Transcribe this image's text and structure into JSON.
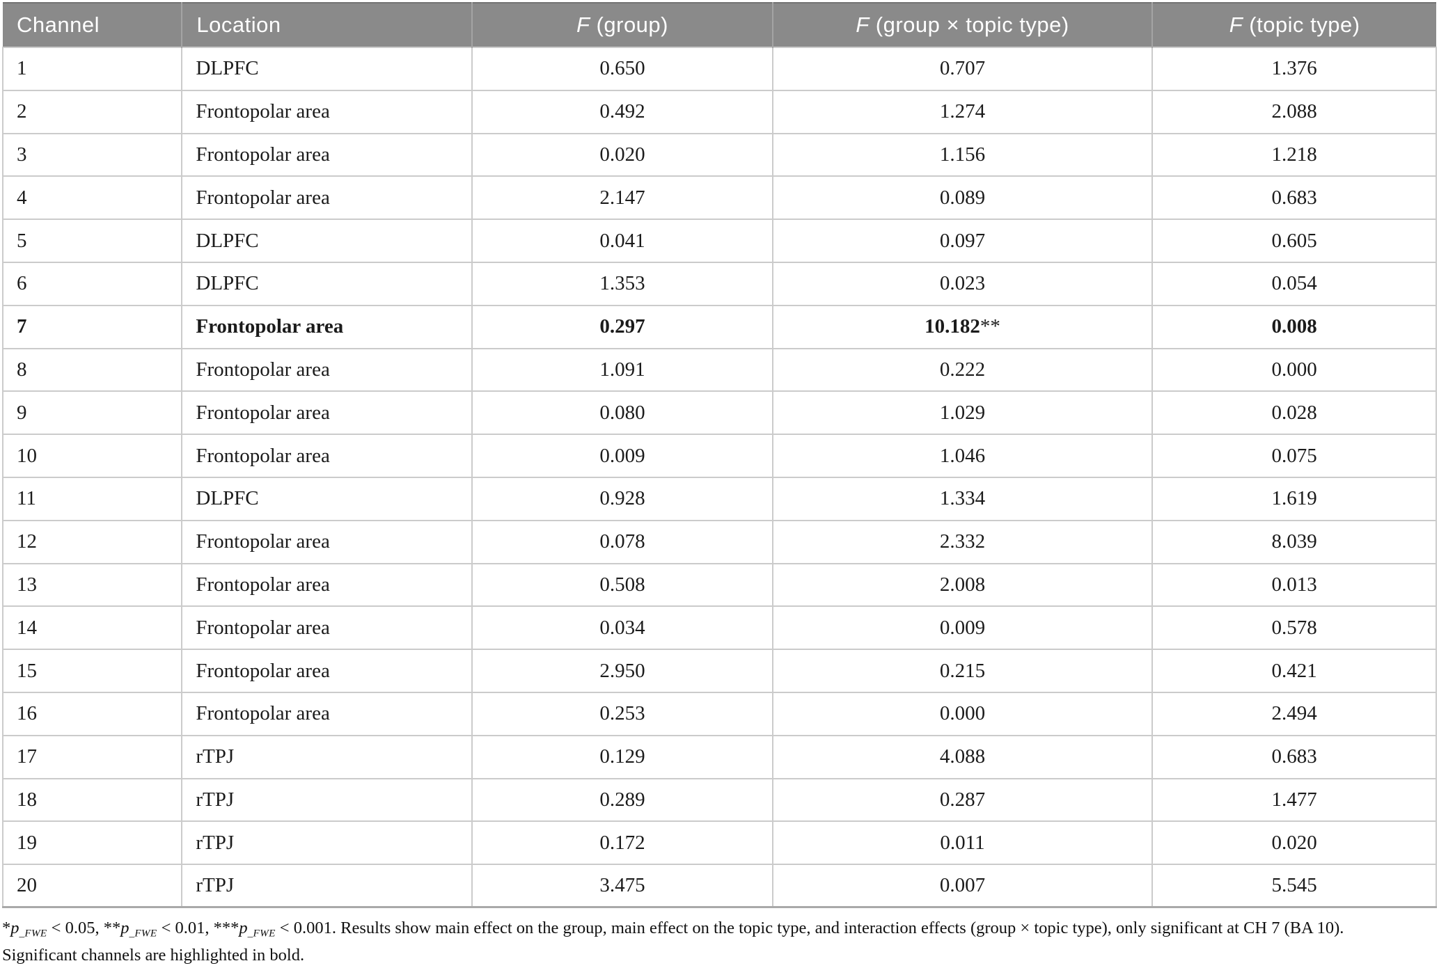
{
  "table": {
    "headers": [
      {
        "label": "Channel"
      },
      {
        "label": "Location"
      },
      {
        "italic": "F",
        "rest": " (group)"
      },
      {
        "italic": "F",
        "rest": " (group × topic type)"
      },
      {
        "italic": "F",
        "rest": " (topic type)"
      }
    ],
    "rows": [
      {
        "channel": "1",
        "location": "DLPFC",
        "f_group": "0.650",
        "f_interaction": "0.707",
        "stars": "",
        "f_topic": "1.376",
        "bold": false
      },
      {
        "channel": "2",
        "location": "Frontopolar area",
        "f_group": "0.492",
        "f_interaction": "1.274",
        "stars": "",
        "f_topic": "2.088",
        "bold": false
      },
      {
        "channel": "3",
        "location": "Frontopolar area",
        "f_group": "0.020",
        "f_interaction": "1.156",
        "stars": "",
        "f_topic": "1.218",
        "bold": false
      },
      {
        "channel": "4",
        "location": "Frontopolar area",
        "f_group": "2.147",
        "f_interaction": "0.089",
        "stars": "",
        "f_topic": "0.683",
        "bold": false
      },
      {
        "channel": "5",
        "location": "DLPFC",
        "f_group": "0.041",
        "f_interaction": "0.097",
        "stars": "",
        "f_topic": "0.605",
        "bold": false
      },
      {
        "channel": "6",
        "location": "DLPFC",
        "f_group": "1.353",
        "f_interaction": "0.023",
        "stars": "",
        "f_topic": "0.054",
        "bold": false
      },
      {
        "channel": "7",
        "location": "Frontopolar area",
        "f_group": "0.297",
        "f_interaction": "10.182",
        "stars": "**",
        "f_topic": "0.008",
        "bold": true
      },
      {
        "channel": "8",
        "location": "Frontopolar area",
        "f_group": "1.091",
        "f_interaction": "0.222",
        "stars": "",
        "f_topic": "0.000",
        "bold": false
      },
      {
        "channel": "9",
        "location": "Frontopolar area",
        "f_group": "0.080",
        "f_interaction": "1.029",
        "stars": "",
        "f_topic": "0.028",
        "bold": false
      },
      {
        "channel": "10",
        "location": "Frontopolar area",
        "f_group": "0.009",
        "f_interaction": "1.046",
        "stars": "",
        "f_topic": "0.075",
        "bold": false
      },
      {
        "channel": "11",
        "location": "DLPFC",
        "f_group": "0.928",
        "f_interaction": "1.334",
        "stars": "",
        "f_topic": "1.619",
        "bold": false
      },
      {
        "channel": "12",
        "location": "Frontopolar area",
        "f_group": "0.078",
        "f_interaction": "2.332",
        "stars": "",
        "f_topic": "8.039",
        "bold": false
      },
      {
        "channel": "13",
        "location": "Frontopolar area",
        "f_group": "0.508",
        "f_interaction": "2.008",
        "stars": "",
        "f_topic": "0.013",
        "bold": false
      },
      {
        "channel": "14",
        "location": "Frontopolar area",
        "f_group": "0.034",
        "f_interaction": "0.009",
        "stars": "",
        "f_topic": "0.578",
        "bold": false
      },
      {
        "channel": "15",
        "location": "Frontopolar area",
        "f_group": "2.950",
        "f_interaction": "0.215",
        "stars": "",
        "f_topic": "0.421",
        "bold": false
      },
      {
        "channel": "16",
        "location": "Frontopolar area",
        "f_group": "0.253",
        "f_interaction": "0.000",
        "stars": "",
        "f_topic": "2.494",
        "bold": false
      },
      {
        "channel": "17",
        "location": "rTPJ",
        "f_group": "0.129",
        "f_interaction": "4.088",
        "stars": "",
        "f_topic": "0.683",
        "bold": false
      },
      {
        "channel": "18",
        "location": "rTPJ",
        "f_group": "0.289",
        "f_interaction": "0.287",
        "stars": "",
        "f_topic": "1.477",
        "bold": false
      },
      {
        "channel": "19",
        "location": "rTPJ",
        "f_group": "0.172",
        "f_interaction": "0.011",
        "stars": "",
        "f_topic": "0.020",
        "bold": false
      },
      {
        "channel": "20",
        "location": "rTPJ",
        "f_group": "3.475",
        "f_interaction": "0.007",
        "stars": "",
        "f_topic": "5.545",
        "bold": false
      }
    ]
  },
  "footnote": {
    "parts": [
      {
        "t": "plain",
        "v": "*"
      },
      {
        "t": "ip",
        "v": "p"
      },
      {
        "t": "sub",
        "v": "_FWE"
      },
      {
        "t": "plain",
        "v": " < 0.05, **"
      },
      {
        "t": "ip",
        "v": "p"
      },
      {
        "t": "sub",
        "v": "_FWE"
      },
      {
        "t": "plain",
        "v": " < 0.01, ***"
      },
      {
        "t": "ip",
        "v": "p"
      },
      {
        "t": "sub",
        "v": "_FWE"
      },
      {
        "t": "plain",
        "v": " < 0.001. Results show main effect on the group, main effect on the topic type, and interaction effects (group × topic type), only significant at CH 7 (BA 10)."
      }
    ],
    "line2": "Significant channels are highlighted in bold."
  },
  "colors": {
    "header_bg": "#8a8a8a",
    "header_text": "#ffffff",
    "grid_line": "#cbcbcb",
    "table_bottom_border": "#a9a9a9",
    "body_text": "#1b1b1b"
  }
}
